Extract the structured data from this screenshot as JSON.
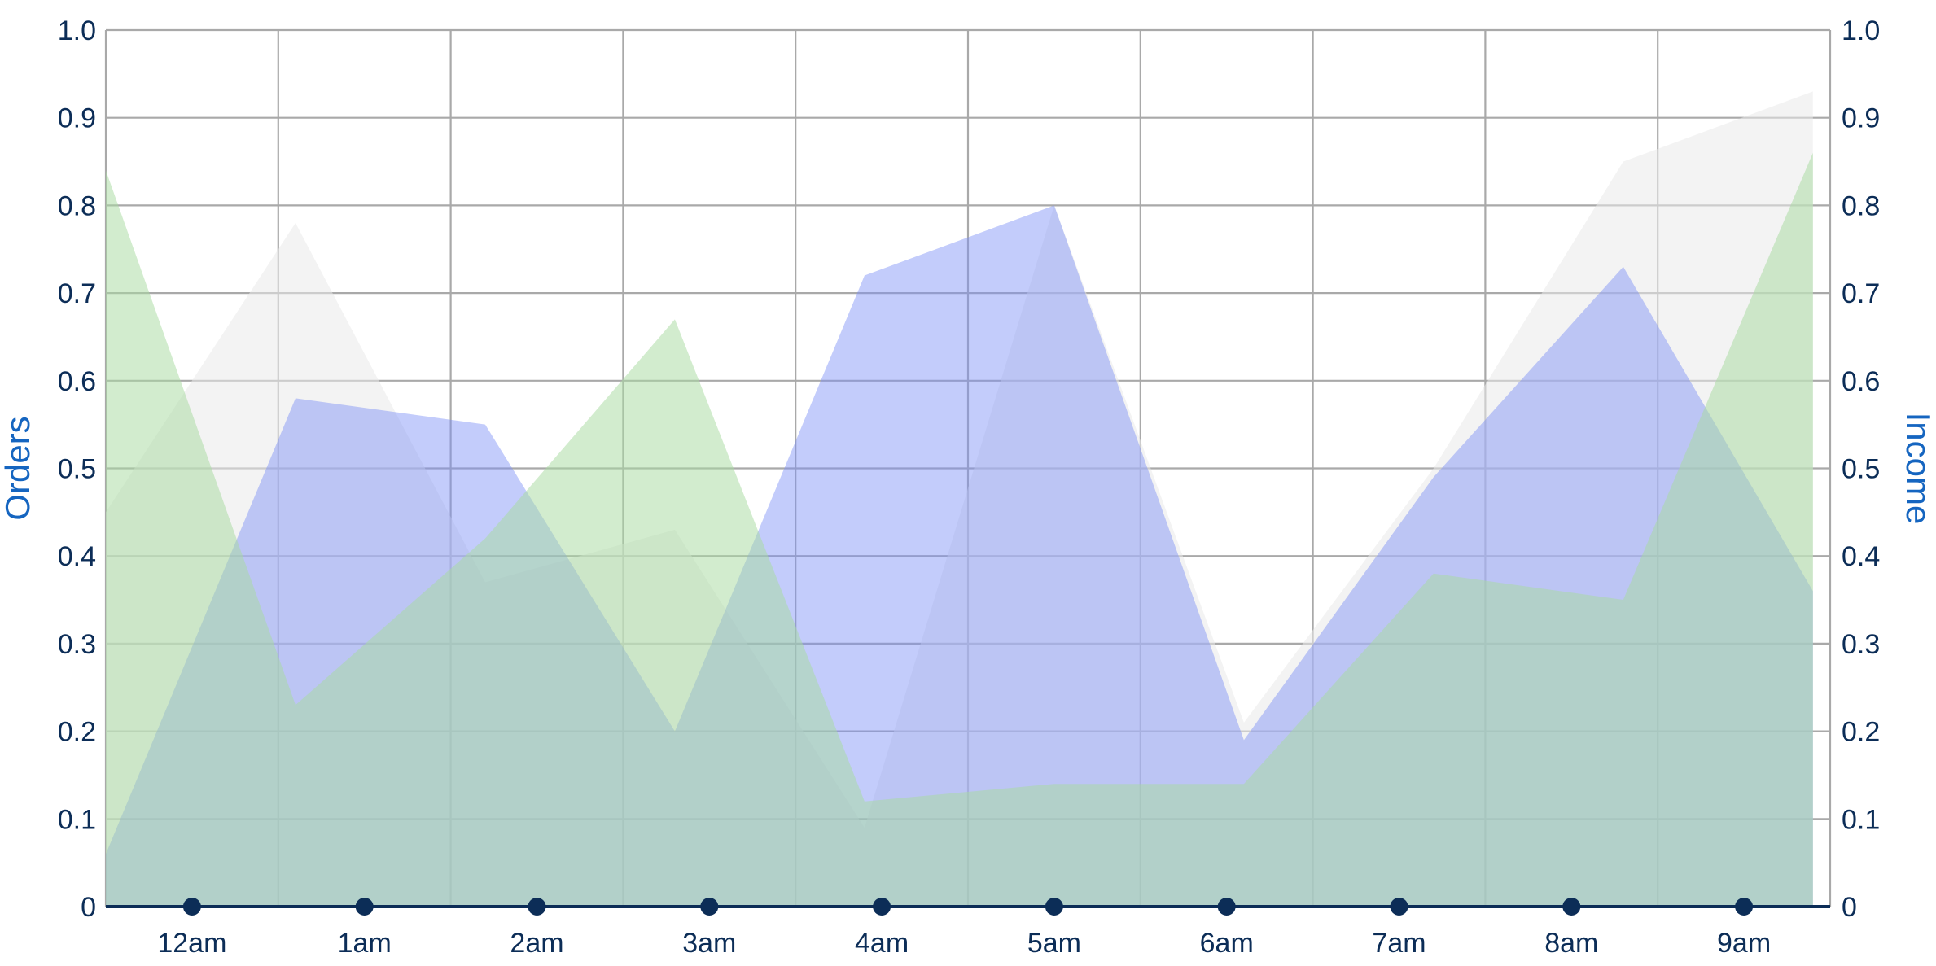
{
  "colors": {
    "tick_text": "#0c2d57",
    "axis_title": "#1565c0",
    "grid": "#a9a9a9",
    "baseline": "#0c2d57",
    "marker": "#0c2d57"
  },
  "chart_data": {
    "type": "area",
    "title": "",
    "xlabel": "",
    "ylabel_left": "Orders",
    "ylabel_right": "Income",
    "ylim": [
      0,
      1
    ],
    "y_ticks": [
      0,
      0.1,
      0.2,
      0.3,
      0.4,
      0.5,
      0.6,
      0.7,
      0.8,
      0.9,
      1.0
    ],
    "y_tick_labels": [
      "0",
      "0.1",
      "0.2",
      "0.3",
      "0.4",
      "0.5",
      "0.6",
      "0.7",
      "0.8",
      "0.9",
      "1.0"
    ],
    "categories": [
      "12am",
      "1am",
      "2am",
      "3am",
      "4am",
      "5am",
      "6am",
      "7am",
      "8am",
      "9am"
    ],
    "grid": true,
    "legend": "none",
    "series": [
      {
        "color": "#e9e9e9",
        "opacity": 0.55,
        "x": [
          0,
          1.1,
          2.2,
          3.3,
          4.4,
          5.5,
          6.6,
          7.7,
          8.8,
          9.9
        ],
        "values": [
          0.45,
          0.78,
          0.37,
          0.43,
          0.09,
          0.8,
          0.21,
          0.5,
          0.85,
          0.93
        ]
      },
      {
        "color": "#7b8ff7",
        "opacity": 0.45,
        "x": [
          0,
          1.1,
          2.2,
          3.3,
          4.4,
          5.5,
          6.6,
          7.7,
          8.8,
          9.9
        ],
        "values": [
          0.06,
          0.58,
          0.55,
          0.2,
          0.72,
          0.8,
          0.19,
          0.49,
          0.73,
          0.36
        ]
      },
      {
        "color": "#a9dba2",
        "opacity": 0.52,
        "x": [
          0,
          1.1,
          2.2,
          3.3,
          4.4,
          5.5,
          6.6,
          7.7,
          8.8,
          9.9
        ],
        "values": [
          0.84,
          0.23,
          0.42,
          0.67,
          0.12,
          0.14,
          0.14,
          0.38,
          0.35,
          0.86
        ]
      }
    ]
  }
}
